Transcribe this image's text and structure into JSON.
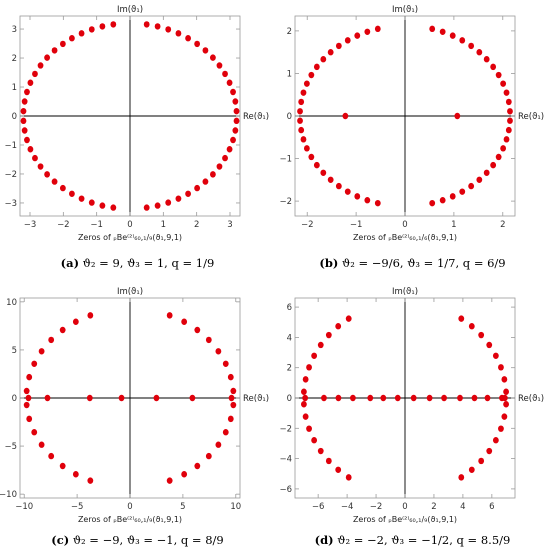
{
  "colors": {
    "point": "#e0000b",
    "frame": "#9a9a9a",
    "axis": "#000000",
    "tick_text": "#333333"
  },
  "chart_data": [
    {
      "type": "scatter",
      "title": "",
      "xlabel": "Re(ϑ₁)",
      "ylabel": "Im(ϑ₁)",
      "xlim": [
        -3.3,
        3.3
      ],
      "ylim": [
        -3.45,
        3.45
      ],
      "xticks": [
        -3,
        -2,
        -1,
        0,
        1,
        2,
        3
      ],
      "yticks": [
        -3,
        -2,
        -1,
        0,
        1,
        2,
        3
      ],
      "bottom_label": "Zeros of ₚBe⁽²⁾₆₀,₁/₉(ϑ₁,9,1)",
      "caption_tag": "(a)",
      "caption_text": "ϑ₂ = 9, ϑ₃ = 1, q = 1/9",
      "ring": {
        "rx": 3.2,
        "ry": 3.2,
        "n": 60,
        "gap": [
          85,
          95
        ]
      },
      "points": []
    },
    {
      "type": "scatter",
      "title": "",
      "xlabel": "Re(ϑ₁)",
      "ylabel": "Im(ϑ₁)",
      "xlim": [
        -2.25,
        2.25
      ],
      "ylim": [
        -2.35,
        2.35
      ],
      "xticks": [
        -2,
        -1,
        0,
        1,
        2
      ],
      "yticks": [
        -2,
        -1,
        0,
        1,
        2
      ],
      "bottom_label": "Zeros of ₚBe⁽²⁾₆₀,₁/₆(ϑ₁,9,1)",
      "caption_tag": "(b)",
      "caption_text": "ϑ₂ = −9/6, ϑ₃ = 1/7, q = 6/9",
      "ring": {
        "rx": 2.15,
        "ry": 2.12,
        "n": 60,
        "gap": [
          80,
          100
        ]
      },
      "points": [
        [
          -1.22,
          0
        ],
        [
          1.07,
          0
        ]
      ]
    },
    {
      "type": "scatter",
      "title": "",
      "xlabel": "Re(ϑ₁)",
      "ylabel": "Im(ϑ₁)",
      "xlim": [
        -10.4,
        10.4
      ],
      "ylim": [
        -10.4,
        10.4
      ],
      "xticks": [
        -10,
        -5,
        0,
        5,
        10
      ],
      "yticks": [
        -10,
        -5,
        0,
        5,
        10
      ],
      "bottom_label": "Zeros of ₚBe⁽²⁾₆₀,₁/₉(ϑ₁,9,1)",
      "caption_tag": "(c)",
      "caption_text": "ϑ₂ = −9, ϑ₃ = −1, q = 8/9",
      "ring": {
        "rx": 9.8,
        "ry": 9.3,
        "n": 40,
        "gap": [
          72,
          108
        ]
      },
      "points": [
        [
          -9.6,
          0
        ],
        [
          -7.8,
          0
        ],
        [
          -3.8,
          0
        ],
        [
          -0.8,
          0
        ],
        [
          2.5,
          0
        ],
        [
          5.9,
          0
        ],
        [
          9.6,
          0
        ]
      ]
    },
    {
      "type": "scatter",
      "title": "",
      "xlabel": "Re(ϑ₁)",
      "ylabel": "Im(ϑ₁)",
      "xlim": [
        -7.6,
        7.6
      ],
      "ylim": [
        -6.6,
        6.6
      ],
      "xticks": [
        -6,
        -4,
        -2,
        0,
        2,
        4,
        6
      ],
      "yticks": [
        -6,
        -4,
        -2,
        0,
        2,
        4,
        6
      ],
      "bottom_label": "Zeros of ₚBe⁽²⁾₆₀,₁/₉(ϑ₁,9,1)",
      "caption_tag": "(d)",
      "caption_text": "ϑ₂ = −2, ϑ₃ = −1/2, q = 8.5/9",
      "ring": {
        "rx": 7.0,
        "ry": 6.3,
        "n": 48,
        "gap": [
          60,
          120
        ]
      },
      "points": [
        [
          -6.9,
          0
        ],
        [
          -5.6,
          0
        ],
        [
          -4.6,
          0
        ],
        [
          -3.6,
          0
        ],
        [
          -2.4,
          0
        ],
        [
          -1.5,
          0
        ],
        [
          -0.5,
          0
        ],
        [
          0.6,
          0
        ],
        [
          1.7,
          0
        ],
        [
          2.7,
          0
        ],
        [
          3.8,
          0
        ],
        [
          4.8,
          0
        ],
        [
          5.7,
          0
        ],
        [
          6.7,
          0
        ],
        [
          6.9,
          0
        ]
      ]
    }
  ]
}
